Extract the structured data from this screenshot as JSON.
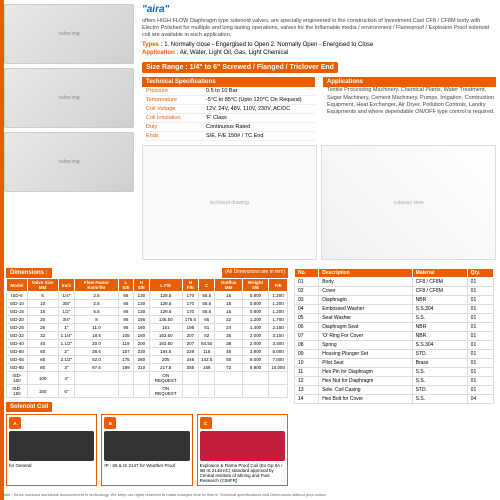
{
  "brand": "\"aira\"",
  "intro": "offers HIGH FLOW Diaphragm type solenoid valves, are specially engineered in the construction of Investment Cast CF8 / CF8M body with Electro Polished for multiple and long lasting operations, valves for the Inflamable media / environment / Flameproof / Explosion Proof solenoid coil are available in such application.",
  "types_label": "Types :",
  "types_val": "1. Normally close - Engergised to Open 2. Normally Open - Energised to Close",
  "app_label": "Application :",
  "app_val": "Air, Water, Light Oil, Gas, Light Chemical",
  "size_range": "Size Range : 1/4\" to 6\" Screwed / Flanged / Triclover End",
  "tech_header": "Technical Specifications",
  "app_header": "Applications",
  "app_text": "Textile Processing Machinery, Chemical Plants, Water Treatment, Sugar Machinery, Cement Machinery, Pumps, Irrigation, Combustion Equipment, Heat Exchanger, Air Dryer, Pollution Controls, Landry Equipments and where dependable ON/OFF type control is required.",
  "specs": [
    {
      "label": "Pressure",
      "val": "0.5 to 10 Bar"
    },
    {
      "label": "Temperature",
      "val": "-5°C to 85°C (Upto 120°C On Request)"
    },
    {
      "label": "Coil Voltage",
      "val": "12V, 24V, 48V, 110V, 230V, AC/DC"
    },
    {
      "label": "Coil Insulation",
      "val": "'F' Class"
    },
    {
      "label": "Duty",
      "val": "Continuous Rated"
    },
    {
      "label": "Ends",
      "val": "S/E, F/E 150# / TC End"
    }
  ],
  "dim_header": "Dimensions :",
  "dim_note": "(All Dimensions are in mm)",
  "dim_cols": [
    "Model",
    "Valve Size MM",
    "Inch",
    "Flow Factor Kv/m³/hr",
    "L S/E",
    "H S/E",
    "L F/E",
    "H F/E",
    "C",
    "Outflux MM",
    "Weight S/E",
    "F/E"
  ],
  "dim_rows": [
    [
      "ISD-6",
      "6",
      "1/4\"",
      "2.5",
      "66",
      "130",
      "128.5",
      "170",
      "55.5",
      "15",
      "0.800",
      "1.200"
    ],
    [
      "ISD-10",
      "10",
      "3/8\"",
      "2.5",
      "66",
      "130",
      "128.5",
      "170",
      "55.5",
      "15",
      "0.800",
      "1.200"
    ],
    [
      "ISD-15",
      "15",
      "1/2\"",
      "5.5",
      "66",
      "130",
      "128.5",
      "170",
      "55.5",
      "16",
      "0.800",
      "1.200"
    ],
    [
      "ISD-20",
      "20",
      "3/4\"",
      "8",
      "85",
      "156",
      "136.50",
      "175.5",
      "65",
      "22",
      "1.200",
      "1.700"
    ],
    [
      "ISD-25",
      "25",
      "1\"",
      "11.0",
      "95",
      "160",
      "151",
      "195",
      "81",
      "24",
      "1.400",
      "2.150"
    ],
    [
      "ISD-32",
      "32",
      "1.1/4\"",
      "18.5",
      "105",
      "180",
      "163.50",
      "207",
      "82",
      "35",
      "2.000",
      "3.150"
    ],
    [
      "ISD-40",
      "40",
      "1.1/2\"",
      "20.0",
      "119",
      "200",
      "163.50",
      "207",
      "84.50",
      "38",
      "2.000",
      "3.300"
    ],
    [
      "ISD-50",
      "50",
      "2\"",
      "38.6",
      "157",
      "230",
      "184.5",
      "229",
      "116",
      "45",
      "3.900",
      "5.000"
    ],
    [
      "ISD-65",
      "65",
      "2.1/2\"",
      "52.0",
      "175",
      "280",
      "205",
      "246",
      "142.5",
      "55",
      "6.000",
      "7.000"
    ],
    [
      "ISD-80",
      "80",
      "3\"",
      "97.6",
      "199",
      "310",
      "217.5",
      "255",
      "158",
      "72",
      "9.900",
      "10.050"
    ],
    [
      "ISD-100",
      "100",
      "4\"",
      "",
      "",
      "",
      "ON REQUEST",
      "",
      "",
      "",
      "",
      ""
    ],
    [
      "ISD-150",
      "150",
      "6\"",
      "",
      "",
      "",
      "ON REQUEST",
      "",
      "",
      "",
      "",
      ""
    ]
  ],
  "bom_cols": [
    "No.",
    "Description",
    "Material",
    "Qty."
  ],
  "bom_rows": [
    [
      "01",
      "Body",
      "CF8 / CF8M",
      "01"
    ],
    [
      "02",
      "Cover",
      "CF8 / CF8M",
      "01"
    ],
    [
      "03",
      "Diaphragm",
      "NBR",
      "01"
    ],
    [
      "04",
      "Embossed Washer",
      "S.S.304",
      "01"
    ],
    [
      "05",
      "Seat Washer",
      "S.S.",
      "01"
    ],
    [
      "06",
      "Diaphragm Seat",
      "NBR",
      "01"
    ],
    [
      "07",
      "'O' Ring For Cover",
      "NBR",
      "01"
    ],
    [
      "08",
      "Spring",
      "S.S.304",
      "01"
    ],
    [
      "09",
      "Housing Plunger Set",
      "STD.",
      "01"
    ],
    [
      "10",
      "Pilot Seat",
      "Brass",
      "01"
    ],
    [
      "11",
      "Hex Pin for Diaphragm",
      "S.S.",
      "01"
    ],
    [
      "12",
      "Hex Nut for Diaphragm",
      "S.S.",
      "01"
    ],
    [
      "13",
      "Sole. Coil Casing",
      "STD.",
      "01"
    ],
    [
      "14",
      "Hex Bolt for Cover",
      "S.S.",
      "04"
    ]
  ],
  "sol_header": "Solenoid Coil",
  "sol_items": [
    {
      "badge": "A",
      "label": "for General",
      "img_class": ""
    },
    {
      "badge": "B",
      "label": "IP - 65 & IS 2147 for Weather Proof",
      "img_class": ""
    },
    {
      "badge": "C",
      "label": "Explosion & Flame Proof Coil (Ex Gp IIA / IIB IS 2148 IIC) standard approval by Central Institute of Mining and Fuel Research (CIMFR)",
      "img_class": "red"
    }
  ],
  "footer": "Note : Since constant worldwide advancement in technology. We keep our rights reserved to make changes time to time in Technical specifications and Dimensions without prior notice",
  "colors": {
    "primary": "#e85d00",
    "brand": "#0066cc"
  }
}
